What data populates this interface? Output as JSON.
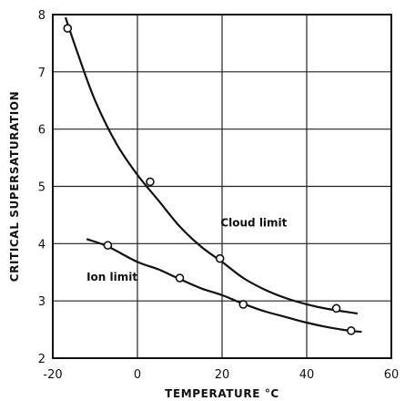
{
  "chart_data": {
    "type": "line",
    "title": "",
    "xlabel": "TEMPERATURE  °C",
    "ylabel": "CRITICAL  SUPERSATURATION",
    "xlim": [
      -20,
      60
    ],
    "ylim": [
      2,
      8
    ],
    "x_ticks": [
      -20,
      0,
      20,
      40,
      60
    ],
    "y_ticks": [
      2,
      3,
      4,
      5,
      6,
      7,
      8
    ],
    "grid": true,
    "series": [
      {
        "name": "Cloud limit",
        "curve": [
          {
            "x": -17,
            "y": 7.95
          },
          {
            "x": -14,
            "y": 7.3
          },
          {
            "x": -10,
            "y": 6.5
          },
          {
            "x": -5,
            "y": 5.75
          },
          {
            "x": 0,
            "y": 5.2
          },
          {
            "x": 5,
            "y": 4.75
          },
          {
            "x": 10,
            "y": 4.3
          },
          {
            "x": 15,
            "y": 3.95
          },
          {
            "x": 20,
            "y": 3.68
          },
          {
            "x": 25,
            "y": 3.4
          },
          {
            "x": 30,
            "y": 3.2
          },
          {
            "x": 35,
            "y": 3.05
          },
          {
            "x": 40,
            "y": 2.94
          },
          {
            "x": 45,
            "y": 2.86
          },
          {
            "x": 52,
            "y": 2.78
          }
        ],
        "points": [
          {
            "x": -16.5,
            "y": 7.76
          },
          {
            "x": 3,
            "y": 5.08
          },
          {
            "x": 19.5,
            "y": 3.74
          },
          {
            "x": 47,
            "y": 2.87
          }
        ]
      },
      {
        "name": "Ion limit",
        "curve": [
          {
            "x": -12,
            "y": 4.08
          },
          {
            "x": -7,
            "y": 3.95
          },
          {
            "x": 0,
            "y": 3.68
          },
          {
            "x": 5,
            "y": 3.55
          },
          {
            "x": 10,
            "y": 3.38
          },
          {
            "x": 15,
            "y": 3.22
          },
          {
            "x": 20,
            "y": 3.1
          },
          {
            "x": 25,
            "y": 2.95
          },
          {
            "x": 30,
            "y": 2.82
          },
          {
            "x": 35,
            "y": 2.72
          },
          {
            "x": 40,
            "y": 2.62
          },
          {
            "x": 45,
            "y": 2.54
          },
          {
            "x": 50,
            "y": 2.48
          },
          {
            "x": 53,
            "y": 2.46
          }
        ],
        "points": [
          {
            "x": -7,
            "y": 3.97
          },
          {
            "x": 10,
            "y": 3.4
          },
          {
            "x": 25,
            "y": 2.94
          },
          {
            "x": 50.5,
            "y": 2.48
          }
        ]
      }
    ],
    "annotations": [
      {
        "text": "Cloud limit",
        "x": 27.5,
        "y": 4.3
      },
      {
        "text": "Ion limit",
        "x": -6,
        "y": 3.35
      }
    ]
  }
}
